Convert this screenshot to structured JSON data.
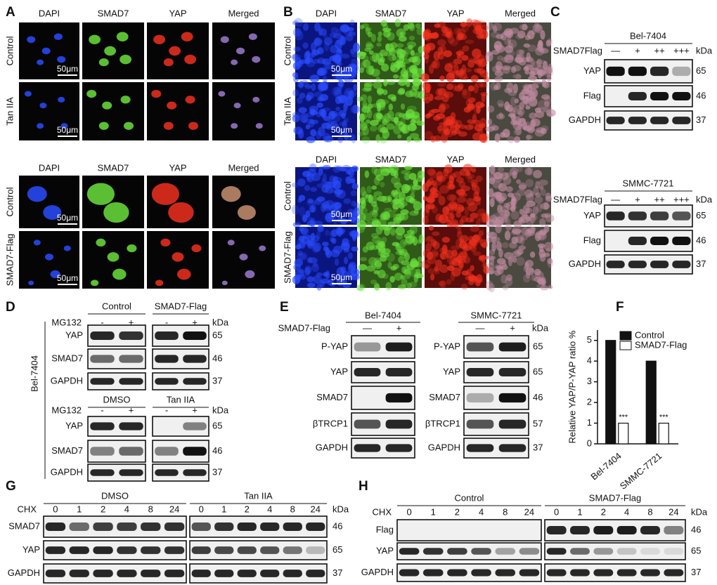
{
  "panels": {
    "A": {
      "letter": "A",
      "blocks": [
        {
          "columns": [
            "DAPI",
            "SMAD7",
            "YAP",
            "Merged"
          ],
          "rows": [
            "Control",
            "Tan IIA"
          ],
          "scale_bar": "50μm"
        },
        {
          "columns": [
            "DAPI",
            "SMAD7",
            "YAP",
            "Merged"
          ],
          "rows": [
            "Control",
            "SMAD7-Flag"
          ],
          "scale_bar": "50μm"
        }
      ]
    },
    "B": {
      "letter": "B",
      "blocks": [
        {
          "columns": [
            "DAPI",
            "SMAD7",
            "YAP",
            "Merged"
          ],
          "rows": [
            "Control",
            "Tan IIA"
          ],
          "scale_bar": "50μm"
        },
        {
          "columns": [
            "DAPI",
            "SMAD7",
            "YAP",
            "Merged"
          ],
          "rows": [
            "Control",
            "SMAD7-Flag"
          ],
          "scale_bar": "50μm"
        }
      ]
    },
    "C": {
      "letter": "C",
      "blots": [
        {
          "cell_line": "Bel-7404",
          "treatment": "SMAD7Flag",
          "lanes": [
            "—",
            "+",
            "++",
            "+++"
          ],
          "unit": "kDa",
          "proteins": [
            "YAP",
            "Flag",
            "GAPDH"
          ],
          "kda": [
            65,
            46,
            37
          ]
        },
        {
          "cell_line": "SMMC-7721",
          "treatment": "SMAD7Flag",
          "lanes": [
            "—",
            "+",
            "++",
            "+++"
          ],
          "unit": "kDa",
          "proteins": [
            "YAP",
            "Flag",
            "GAPDH"
          ],
          "kda": [
            65,
            46,
            37
          ]
        }
      ]
    },
    "D": {
      "letter": "D",
      "cell_line": "Bel-7404",
      "blocks": [
        {
          "treatment": "MG132",
          "groups": [
            "Control",
            "SMAD7-Flag"
          ],
          "lanes": [
            "-",
            "+"
          ],
          "unit": "kDa",
          "proteins": [
            "YAP",
            "SMAD7",
            "GAPDH"
          ],
          "kda": [
            65,
            46,
            37
          ]
        },
        {
          "treatment": "MG132",
          "groups": [
            "DMSO",
            "Tan IIA"
          ],
          "lanes": [
            "-",
            "+"
          ],
          "unit": "kDa",
          "proteins": [
            "YAP",
            "SMAD7",
            "GAPDH"
          ],
          "kda": [
            65,
            46,
            37
          ]
        }
      ]
    },
    "E": {
      "letter": "E",
      "treatment": "SMAD7-Flag",
      "unit": "kDa",
      "groups": [
        {
          "cell_line": "Bel-7404",
          "lanes": [
            "—",
            "+"
          ],
          "proteins": [
            "P-YAP",
            "YAP",
            "SMAD7",
            "βTRCP1",
            "GAPDH"
          ]
        },
        {
          "cell_line": "SMMC-7721",
          "lanes": [
            "—",
            "+"
          ],
          "proteins": [
            "P-YAP",
            "YAP",
            "SMAD7",
            "βTRCP1",
            "GAPDH"
          ]
        }
      ],
      "kda": [
        65,
        65,
        46,
        57,
        37
      ]
    },
    "G": {
      "letter": "G",
      "treatment": "CHX",
      "unit": "kDa",
      "groups": [
        "DMSO",
        "Tan IIA"
      ],
      "lanes": [
        0,
        1,
        2,
        4,
        8,
        24
      ],
      "proteins": [
        "SMAD7",
        "YAP",
        "GAPDH"
      ],
      "kda": [
        46,
        65,
        37
      ]
    },
    "H": {
      "letter": "H",
      "treatment": "CHX",
      "unit": "kDa",
      "groups": [
        "Control",
        "SMAD7-Flag"
      ],
      "lanes": [
        0,
        1,
        2,
        4,
        8,
        24
      ],
      "proteins": [
        "Flag",
        "YAP",
        "GAPDH"
      ],
      "kda": [
        46,
        65,
        37
      ]
    }
  },
  "chart_data": {
    "type": "bar",
    "letter": "F",
    "y_label": "Relative YAP/P-YAP ratio %",
    "categories": [
      "Bel-7404",
      "SMMC-7721"
    ],
    "series": [
      {
        "name": "Control",
        "color": "#111111",
        "values": [
          5,
          4
        ]
      },
      {
        "name": "SMAD7-Flag",
        "color": "#ffffff",
        "values": [
          1,
          1
        ],
        "annotations": [
          "***",
          "***"
        ]
      }
    ],
    "ylim": [
      0,
      5.5
    ],
    "yticks": [
      0,
      1,
      2,
      3,
      4,
      5
    ],
    "legend": "upper right"
  }
}
